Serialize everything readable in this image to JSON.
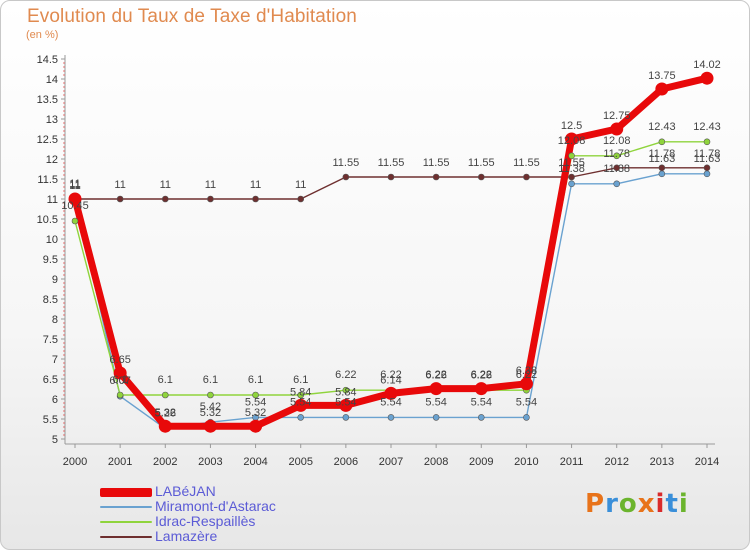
{
  "header": {
    "title": "Evolution du Taux de Taxe d'Habitation",
    "units": "(en %)"
  },
  "logo": {
    "text": "Proxiti",
    "colors": [
      "#e8731a",
      "#3a8fd9",
      "#6bb42d",
      "#e8731a",
      "#d92b2b",
      "#3a8fd9",
      "#6bb42d"
    ]
  },
  "chart_data": {
    "type": "line",
    "x": [
      "2000",
      "2001",
      "2002",
      "2003",
      "2004",
      "2005",
      "2006",
      "2007",
      "2008",
      "2009",
      "2010",
      "2011",
      "2012",
      "2013",
      "2014"
    ],
    "ylim": [
      5,
      14.5
    ],
    "yticks": [
      "5",
      "5.5",
      "6",
      "6.5",
      "7",
      "7.5",
      "8",
      "8.5",
      "9",
      "9.5",
      "10",
      "10.5",
      "11",
      "11.5",
      "12",
      "12.5",
      "13",
      "13.5",
      "14",
      "14.5"
    ],
    "grid": false,
    "legend_position": "bottom-left",
    "series": [
      {
        "name": "LABéJAN",
        "color": "#e8090a",
        "values": [
          11,
          6.65,
          5.32,
          5.32,
          5.32,
          5.84,
          5.84,
          6.14,
          6.26,
          6.26,
          6.38,
          12.5,
          12.75,
          13.75,
          14.02
        ],
        "labels": [
          "11",
          "6.65",
          "5.32",
          "5.32",
          "5.32",
          "5.84",
          "5.84",
          "6.14",
          "6.26",
          "6.26",
          "6.38",
          "12.5",
          "12.75",
          "13.75",
          "14.02"
        ]
      },
      {
        "name": "Miramont-d'Astarac",
        "color": "#6aa2d0",
        "values": [
          11,
          6.07,
          5.26,
          5.42,
          5.54,
          5.54,
          5.54,
          5.54,
          5.54,
          5.54,
          5.54,
          11.38,
          11.38,
          11.63,
          11.63
        ],
        "labels": [
          "11",
          "6.07",
          "5.26",
          "5.42",
          "5.54",
          "5.54",
          "5.54",
          "5.54",
          "5.54",
          "5.54",
          "5.54",
          "11.38",
          "11.38",
          "11.63",
          "11.63"
        ]
      },
      {
        "name": "Idrac-Respaillès",
        "color": "#8fd43c",
        "values": [
          10.45,
          6.1,
          6.1,
          6.1,
          6.1,
          6.1,
          6.22,
          6.22,
          6.22,
          6.22,
          6.22,
          12.08,
          12.08,
          12.43,
          12.43
        ],
        "labels": [
          "10.45",
          "6.1",
          "6.1",
          "6.1",
          "6.1",
          "6.1",
          "6.22",
          "6.22",
          "6.22",
          "6.22",
          "6.22",
          "12.08",
          "12.08",
          "12.43",
          "12.43"
        ]
      },
      {
        "name": "Lamazère",
        "color": "#6e2f2f",
        "values": [
          11,
          11,
          11,
          11,
          11,
          11,
          11.55,
          11.55,
          11.55,
          11.55,
          11.55,
          11.55,
          11.78,
          11.78,
          11.78
        ],
        "labels": [
          "11",
          "11",
          "11",
          "11",
          "11",
          "11",
          "11.55",
          "11.55",
          "11.55",
          "11.55",
          "11.55",
          "11.55",
          "11.78",
          "11.78",
          "11.78"
        ]
      }
    ]
  }
}
